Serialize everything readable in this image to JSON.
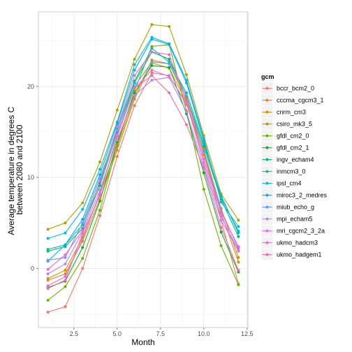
{
  "chart_data": {
    "type": "line",
    "xlabel": "Month",
    "ylabel_lines": [
      "Average temperature in degrees C",
      "between 2080 and 2100"
    ],
    "xlim": [
      0.45,
      12.55
    ],
    "ylim": [
      -6.5,
      28.2
    ],
    "x_ticks": [
      2.5,
      5.0,
      7.5,
      10.0,
      12.5
    ],
    "x_tick_labels": [
      "2.5",
      "5.0",
      "7.5",
      "10.0",
      "12.5"
    ],
    "y_ticks": [
      0,
      10,
      20
    ],
    "y_tick_labels": [
      "0",
      "10",
      "20"
    ],
    "grid": true,
    "legend": {
      "title": "gcm",
      "position": "right"
    },
    "x": [
      1,
      2,
      3,
      4,
      5,
      6,
      7,
      8,
      9,
      10,
      11,
      12
    ],
    "series": [
      {
        "name": "bccr_bcm2_0",
        "color": "#F8766D",
        "values": [
          -4.8,
          -4.2,
          0.0,
          5.8,
          12.3,
          17.9,
          21.5,
          21.2,
          18.0,
          13.1,
          5.3,
          -1.7
        ]
      },
      {
        "name": "cccma_cgcm3_1",
        "color": "#E7861B",
        "values": [
          -1.3,
          -0.6,
          3.0,
          7.6,
          13.0,
          18.6,
          22.6,
          22.0,
          18.3,
          12.5,
          6.1,
          0.7
        ]
      },
      {
        "name": "cnrm_cm3",
        "color": "#CF9400",
        "values": [
          -1.1,
          -0.2,
          3.4,
          8.1,
          13.4,
          18.9,
          22.9,
          22.5,
          18.6,
          13.0,
          6.6,
          1.2
        ]
      },
      {
        "name": "csiro_mk3_5",
        "color": "#AFA100",
        "values": [
          4.3,
          5.0,
          7.2,
          11.7,
          17.4,
          23.0,
          26.8,
          26.6,
          21.3,
          14.6,
          8.2,
          5.3
        ]
      },
      {
        "name": "gfdl_cm2_0",
        "color": "#72B000",
        "values": [
          -3.5,
          -2.0,
          1.1,
          6.4,
          13.6,
          19.5,
          24.4,
          24.6,
          17.3,
          8.7,
          2.5,
          -1.8
        ]
      },
      {
        "name": "gfdl_cm2_1",
        "color": "#00B81F",
        "values": [
          -2.1,
          -1.4,
          2.3,
          7.4,
          13.9,
          19.3,
          22.3,
          22.1,
          17.0,
          10.5,
          4.0,
          -0.4
        ]
      },
      {
        "name": "ingv_echam4",
        "color": "#00BE6B",
        "values": [
          1.9,
          2.4,
          4.4,
          9.1,
          15.0,
          20.4,
          23.8,
          23.0,
          18.9,
          13.4,
          7.6,
          3.5
        ]
      },
      {
        "name": "inmcm3_0",
        "color": "#00C1A7",
        "values": [
          2.1,
          2.6,
          4.8,
          9.4,
          15.4,
          20.6,
          24.2,
          22.7,
          19.3,
          13.7,
          8.0,
          3.9
        ]
      },
      {
        "name": "ipsl_cm4",
        "color": "#00BCD8",
        "values": [
          3.3,
          3.9,
          6.5,
          10.9,
          16.1,
          22.4,
          25.4,
          24.7,
          20.7,
          14.3,
          7.3,
          4.6
        ]
      },
      {
        "name": "miroc3_2_medres",
        "color": "#00B0F6",
        "values": [
          0.8,
          2.6,
          5.4,
          10.3,
          15.9,
          21.8,
          25.2,
          24.6,
          20.4,
          14.0,
          7.8,
          4.1
        ]
      },
      {
        "name": "miub_echo_g",
        "color": "#619CFF",
        "values": [
          0.9,
          1.2,
          5.0,
          9.9,
          15.1,
          20.0,
          22.7,
          22.5,
          19.0,
          12.8,
          6.4,
          2.2
        ]
      },
      {
        "name": "mpi_echam5",
        "color": "#B983FF",
        "values": [
          -0.6,
          0.5,
          4.0,
          8.6,
          14.1,
          19.0,
          20.7,
          21.0,
          17.2,
          11.2,
          5.3,
          1.9
        ]
      },
      {
        "name": "mri_cgcm2_3_2a",
        "color": "#E76BF3",
        "values": [
          -1.9,
          -0.9,
          3.2,
          8.3,
          14.5,
          19.8,
          21.8,
          21.1,
          18.2,
          11.6,
          5.7,
          2.0
        ]
      },
      {
        "name": "ukmo_hadcm3",
        "color": "#FD61D1",
        "values": [
          -0.1,
          1.5,
          4.2,
          9.6,
          15.5,
          21.2,
          23.8,
          23.5,
          18.4,
          12.0,
          6.2,
          2.4
        ]
      },
      {
        "name": "ukmo_hadgem1",
        "color": "#FF67A4",
        "values": [
          -2.2,
          -1.3,
          3.8,
          8.0,
          14.7,
          19.8,
          21.2,
          19.3,
          15.8,
          11.0,
          4.5,
          -0.2
        ]
      }
    ]
  }
}
